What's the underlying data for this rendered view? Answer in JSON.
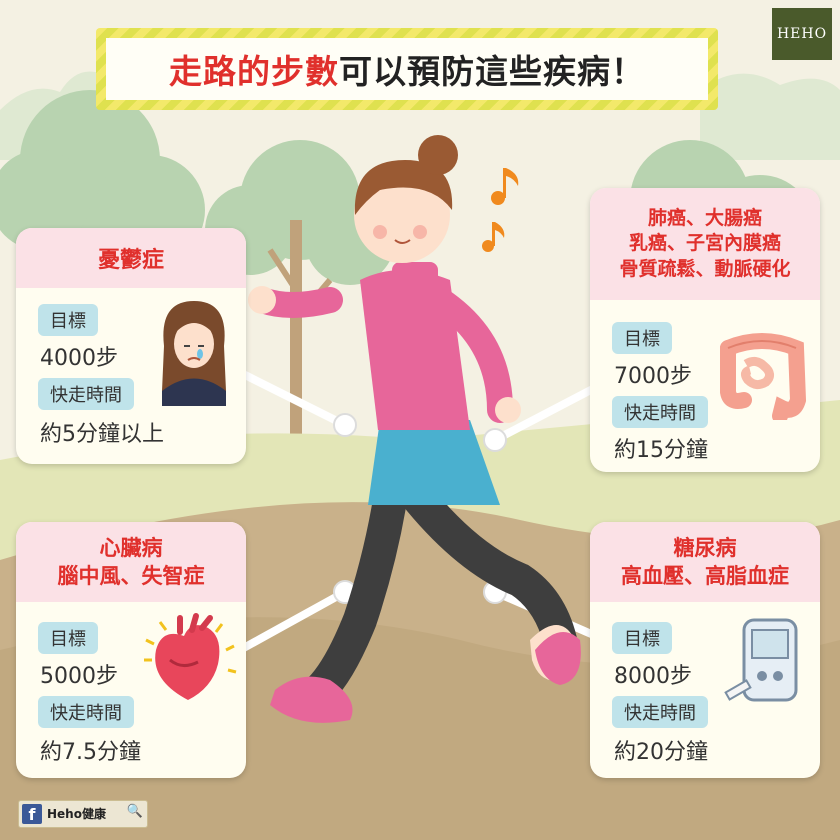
{
  "header": {
    "title_red": "走路的步數",
    "title_black": "可以預防這些疾病！"
  },
  "logo": "HEHO",
  "cards": {
    "depression": {
      "title_lines": [
        "憂鬱症"
      ],
      "target_label": "目標",
      "steps": "4000步",
      "time_label": "快走時間",
      "time": "約5分鐘以上",
      "icon": "sad-woman-icon"
    },
    "cancer": {
      "title_lines": [
        "肺癌、大腸癌",
        "乳癌、子宮內膜癌",
        "骨質疏鬆、動脈硬化"
      ],
      "target_label": "目標",
      "steps": "7000步",
      "time_label": "快走時間",
      "time": "約15分鐘",
      "icon": "intestine-icon"
    },
    "heart": {
      "title_lines": [
        "心臟病",
        "腦中風、失智症"
      ],
      "target_label": "目標",
      "steps": "5000步",
      "time_label": "快走時間",
      "time": "約7.5分鐘",
      "icon": "heart-organ-icon"
    },
    "diabetes": {
      "title_lines": [
        "糖尿病",
        "高血壓、高脂血症"
      ],
      "target_label": "目標",
      "steps": "8000步",
      "time_label": "快走時間",
      "time": "約20分鐘",
      "icon": "glucose-meter-icon"
    }
  },
  "footer": {
    "fb_icon": "f",
    "page_name": "Heho健康",
    "search_icon": "search-icon"
  },
  "colors": {
    "accent_red": "#e0302c",
    "card_head": "#fbe1e6",
    "pill": "#bfe3ea",
    "shirt": "#e7669a",
    "skirt": "#4ab0cf",
    "tree": "#b9d3b2",
    "path": "#c8b089",
    "grass": "#e2e8b6"
  }
}
